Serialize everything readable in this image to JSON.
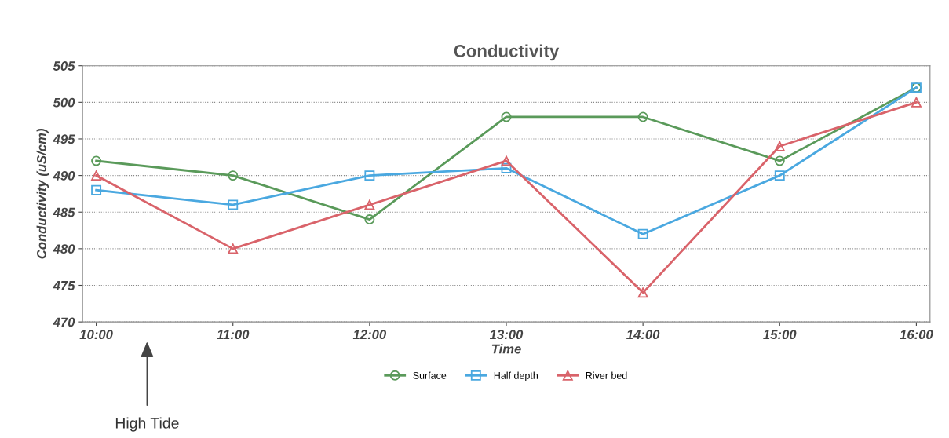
{
  "chart_data": {
    "type": "line",
    "title": "Conductivity",
    "xlabel": "Time",
    "ylabel": "Conductivity (uS/cm)",
    "x": [
      10,
      11,
      12,
      13,
      14,
      15,
      16
    ],
    "series": [
      {
        "name": "Surface",
        "color": "#5a9a5a",
        "marker": "circle",
        "values": [
          492,
          490,
          484,
          498,
          498,
          492,
          502
        ]
      },
      {
        "name": "Half depth",
        "color": "#4aa8e0",
        "marker": "square",
        "values": [
          488,
          486,
          490,
          491,
          482,
          490,
          502
        ]
      },
      {
        "name": "River bed",
        "color": "#d9636a",
        "marker": "triangle",
        "values": [
          490,
          480,
          486,
          492,
          474,
          494,
          500
        ]
      }
    ],
    "xlim": [
      9.9,
      16.1
    ],
    "xticks": [
      {
        "value": 10,
        "label": "10:00"
      },
      {
        "value": 11,
        "label": "11:00"
      },
      {
        "value": 12,
        "label": "12:00"
      },
      {
        "value": 13,
        "label": "13:00"
      },
      {
        "value": 14,
        "label": "14:00"
      },
      {
        "value": 15,
        "label": "15:00"
      },
      {
        "value": 16,
        "label": "16:00"
      }
    ],
    "ylim": [
      470,
      505
    ],
    "yticks": [
      470,
      475,
      480,
      485,
      490,
      495,
      500,
      505
    ],
    "grid": "y",
    "legend": "bottom",
    "line_style": "solid",
    "annotations": [
      "High Tide"
    ]
  }
}
